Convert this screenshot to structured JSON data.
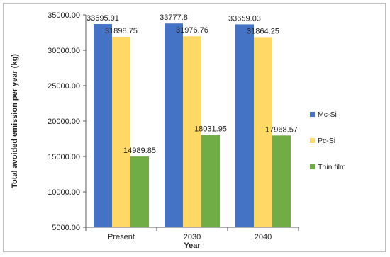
{
  "chart_data": {
    "type": "bar",
    "categories": [
      "Present",
      "2030",
      "2040"
    ],
    "series": [
      {
        "name": "Mc-Si",
        "color": "#4472C4",
        "values": [
          33695.91,
          33777.8,
          33659.03
        ],
        "labels": [
          "33695.91",
          "33777.8",
          "33659.03"
        ]
      },
      {
        "name": "Pc-Si",
        "color": "#FFD966",
        "values": [
          31898.75,
          31976.76,
          31864.25
        ],
        "labels": [
          "31898.75",
          "31976.76",
          "31864.25"
        ]
      },
      {
        "name": "Thin film",
        "color": "#70AD47",
        "values": [
          14989.85,
          18031.95,
          17968.57
        ],
        "labels": [
          "14989.85",
          "18031.95",
          "17968.57"
        ]
      }
    ],
    "yticks": [
      "5000.00",
      "10000.00",
      "15000.00",
      "20000.00",
      "25000.00",
      "30000.00",
      "35000.00"
    ],
    "ylim": [
      5000,
      35000
    ],
    "xlabel": "Year",
    "ylabel": "Total avoided emission per year (kg)",
    "legend_position": "right",
    "grid": false
  }
}
